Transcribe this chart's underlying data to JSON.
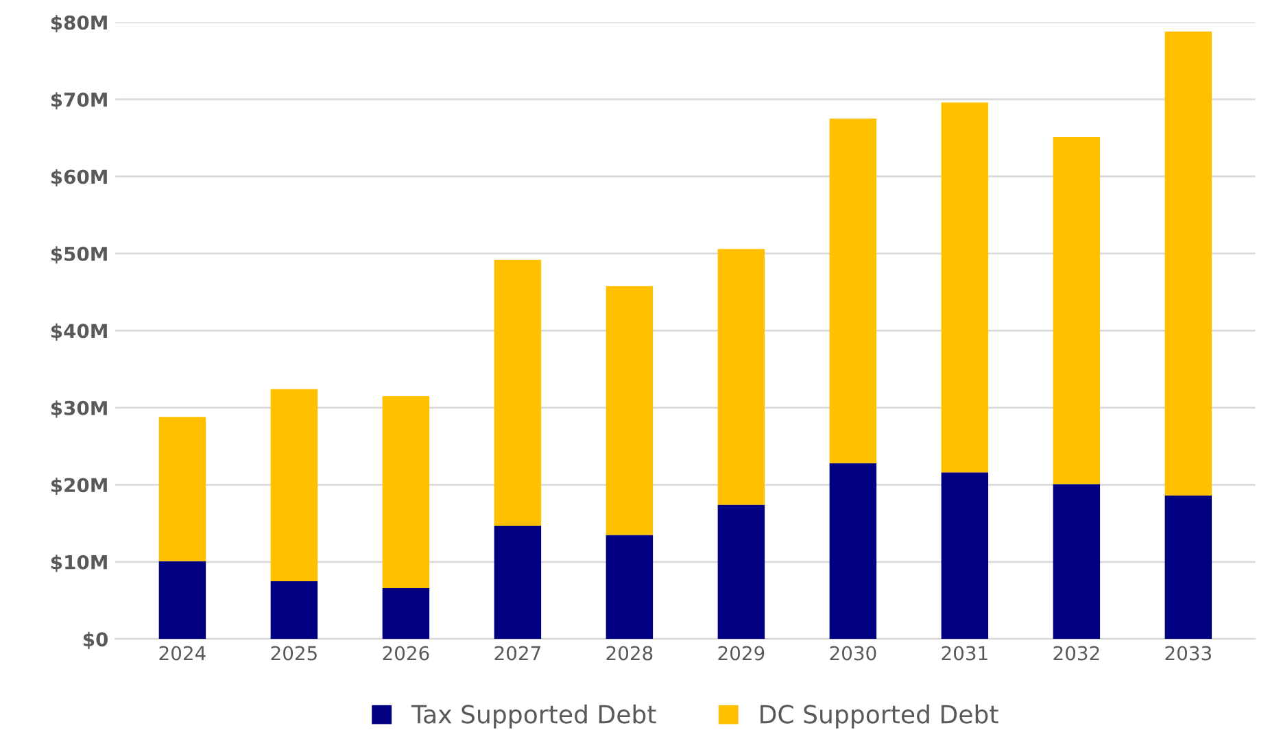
{
  "chart_data": {
    "type": "bar",
    "stacked": true,
    "categories": [
      "2024",
      "2025",
      "2026",
      "2027",
      "2028",
      "2029",
      "2030",
      "2031",
      "2032",
      "2033"
    ],
    "series": [
      {
        "name": "Tax Supported Debt",
        "color": "#000080",
        "values": [
          10.1,
          7.5,
          6.6,
          14.7,
          13.5,
          17.4,
          22.8,
          21.6,
          20.1,
          18.6
        ]
      },
      {
        "name": "DC Supported Debt",
        "color": "#ffc000",
        "values": [
          18.7,
          24.9,
          24.9,
          34.5,
          32.3,
          33.2,
          44.7,
          48.0,
          45.0,
          60.2
        ]
      }
    ],
    "ylim": [
      0,
      80
    ],
    "yticks": [
      {
        "value": 0,
        "label": "$0"
      },
      {
        "value": 10,
        "label": "$10M"
      },
      {
        "value": 20,
        "label": "$20M"
      },
      {
        "value": 30,
        "label": "$30M"
      },
      {
        "value": 40,
        "label": "$40M"
      },
      {
        "value": 50,
        "label": "$50M"
      },
      {
        "value": 60,
        "label": "$60M"
      },
      {
        "value": 70,
        "label": "$70M"
      },
      {
        "value": 80,
        "label": "$80M"
      }
    ],
    "grid": "y",
    "legend": "bottom"
  }
}
